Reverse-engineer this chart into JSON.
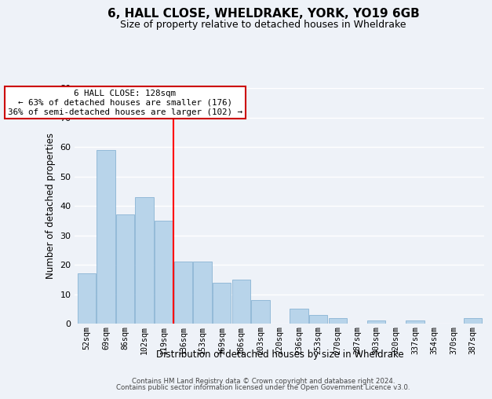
{
  "title1": "6, HALL CLOSE, WHELDRAKE, YORK, YO19 6GB",
  "title2": "Size of property relative to detached houses in Wheldrake",
  "xlabel": "Distribution of detached houses by size in Wheldrake",
  "ylabel": "Number of detached properties",
  "categories": [
    "52sqm",
    "69sqm",
    "86sqm",
    "102sqm",
    "119sqm",
    "136sqm",
    "153sqm",
    "169sqm",
    "186sqm",
    "203sqm",
    "220sqm",
    "236sqm",
    "253sqm",
    "270sqm",
    "287sqm",
    "303sqm",
    "320sqm",
    "337sqm",
    "354sqm",
    "370sqm",
    "387sqm"
  ],
  "values": [
    17,
    59,
    37,
    43,
    35,
    21,
    21,
    14,
    15,
    8,
    0,
    5,
    3,
    2,
    0,
    1,
    0,
    1,
    0,
    0,
    2
  ],
  "bar_color": "#b8d4ea",
  "bar_edge_color": "#8ab4d4",
  "vline_x_idx": 4.5,
  "annotation_title": "6 HALL CLOSE: 128sqm",
  "annotation_line1": "← 63% of detached houses are smaller (176)",
  "annotation_line2": "36% of semi-detached houses are larger (102) →",
  "ylim": [
    0,
    80
  ],
  "yticks": [
    0,
    10,
    20,
    30,
    40,
    50,
    60,
    70,
    80
  ],
  "footer1": "Contains HM Land Registry data © Crown copyright and database right 2024.",
  "footer2": "Contains public sector information licensed under the Open Government Licence v3.0.",
  "bg_color": "#eef2f8",
  "grid_color": "#ffffff"
}
